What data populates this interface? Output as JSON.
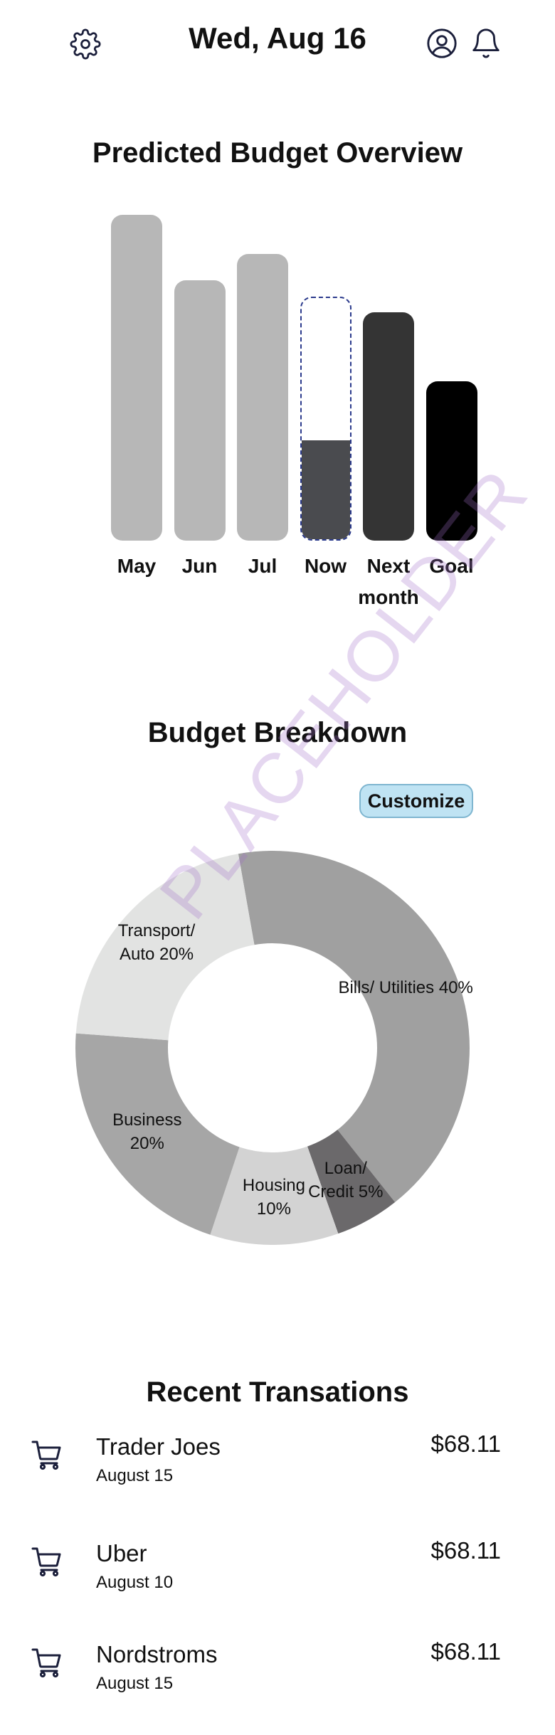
{
  "header": {
    "date": "Wed, Aug 16",
    "settings_icon": "gear-icon",
    "profile_icon": "user-circle-icon",
    "notifications_icon": "bell-icon"
  },
  "overview": {
    "title": "Predicted Budget Overview"
  },
  "chart_data": {
    "type": "bar",
    "title": "Predicted Budget Overview",
    "categories": [
      "May",
      "Jun",
      "Jul",
      "Now",
      "Next\nmonth",
      "Goal"
    ],
    "values": [
      100,
      80,
      88,
      75,
      70,
      49
    ],
    "now_progress": 0.41,
    "ylim": [
      0,
      100
    ],
    "colors": [
      "#b7b7b7",
      "#b7b7b7",
      "#b7b7b7",
      "#4a4b4f",
      "#343434",
      "#000000"
    ],
    "grid": false
  },
  "breakdown": {
    "title": "Budget Breakdown",
    "customize_label": "Customize",
    "segments": [
      {
        "label": "Bills/ Utilities 40%",
        "value": 40,
        "color": "#a0a0a0"
      },
      {
        "label": "Loan/\nCredit 5%",
        "value": 5,
        "color": "#6b696b"
      },
      {
        "label": "Housing\n10%",
        "value": 10,
        "color": "#d3d3d3"
      },
      {
        "label": "Business\n20%",
        "value": 20,
        "color": "#a6a6a6"
      },
      {
        "label": "Transport/\nAuto 20%",
        "value": 20,
        "color": "#e2e3e2"
      }
    ]
  },
  "watermark": "PLACEHOLDER",
  "transactions": {
    "title": "Recent Transations",
    "icon": "shopping-cart-icon",
    "items": [
      {
        "name": "Trader Joes",
        "date": "August 15",
        "amount": "$68.11"
      },
      {
        "name": "Uber",
        "date": "August 10",
        "amount": "$68.11"
      },
      {
        "name": "Nordstroms",
        "date": "August 15",
        "amount": "$68.11"
      }
    ]
  }
}
